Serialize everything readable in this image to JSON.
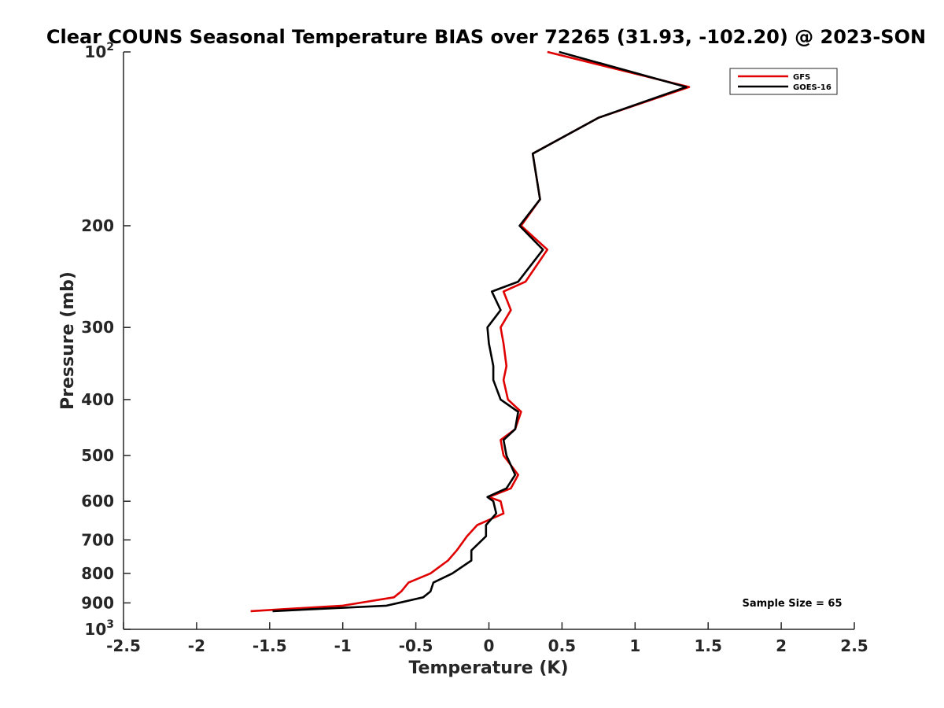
{
  "chart_data": {
    "type": "line",
    "orientation": "profile",
    "title": "Clear COUNS Seasonal Temperature BIAS over 72265 (31.93, -102.20) @ 2023-SON",
    "xlabel": "Temperature (K)",
    "ylabel": "Pressure (mb)",
    "xlim": [
      -2.5,
      2.5
    ],
    "ylim": [
      100,
      1000
    ],
    "yscale": "log",
    "yreversed": true,
    "grid": false,
    "legend_position": "top-right",
    "annotation": "Sample Size = 65",
    "x_ticks": [
      {
        "value": -2.5,
        "label": "-2.5"
      },
      {
        "value": -2,
        "label": "-2"
      },
      {
        "value": -1.5,
        "label": "-1.5"
      },
      {
        "value": -1,
        "label": "-1"
      },
      {
        "value": -0.5,
        "label": "-0.5"
      },
      {
        "value": 0,
        "label": "0"
      },
      {
        "value": 0.5,
        "label": "0.5"
      },
      {
        "value": 1,
        "label": "1"
      },
      {
        "value": 1.5,
        "label": "1.5"
      },
      {
        "value": 2,
        "label": "2"
      },
      {
        "value": 2.5,
        "label": "2.5"
      }
    ],
    "y_ticks": [
      {
        "value": 100,
        "base": "10",
        "exp": "2"
      },
      {
        "value": 200,
        "label": "200"
      },
      {
        "value": 300,
        "label": "300"
      },
      {
        "value": 400,
        "label": "400"
      },
      {
        "value": 500,
        "label": "500"
      },
      {
        "value": 600,
        "label": "600"
      },
      {
        "value": 700,
        "label": "700"
      },
      {
        "value": 800,
        "label": "800"
      },
      {
        "value": 900,
        "label": "900"
      },
      {
        "value": 1000,
        "base": "10",
        "exp": "3"
      }
    ],
    "series": [
      {
        "name": "GFS",
        "color": "#e00000",
        "points": [
          {
            "p": 100,
            "t": 0.4
          },
          {
            "p": 115,
            "t": 1.37
          },
          {
            "p": 130,
            "t": 0.75
          },
          {
            "p": 150,
            "t": 0.3
          },
          {
            "p": 180,
            "t": 0.35
          },
          {
            "p": 200,
            "t": 0.22
          },
          {
            "p": 220,
            "t": 0.4
          },
          {
            "p": 250,
            "t": 0.25
          },
          {
            "p": 260,
            "t": 0.1
          },
          {
            "p": 280,
            "t": 0.15
          },
          {
            "p": 300,
            "t": 0.08
          },
          {
            "p": 320,
            "t": 0.1
          },
          {
            "p": 350,
            "t": 0.12
          },
          {
            "p": 370,
            "t": 0.1
          },
          {
            "p": 400,
            "t": 0.13
          },
          {
            "p": 420,
            "t": 0.22
          },
          {
            "p": 450,
            "t": 0.18
          },
          {
            "p": 470,
            "t": 0.08
          },
          {
            "p": 500,
            "t": 0.1
          },
          {
            "p": 540,
            "t": 0.2
          },
          {
            "p": 570,
            "t": 0.15
          },
          {
            "p": 590,
            "t": 0.0
          },
          {
            "p": 600,
            "t": 0.08
          },
          {
            "p": 630,
            "t": 0.1
          },
          {
            "p": 660,
            "t": -0.08
          },
          {
            "p": 690,
            "t": -0.15
          },
          {
            "p": 730,
            "t": -0.22
          },
          {
            "p": 760,
            "t": -0.28
          },
          {
            "p": 800,
            "t": -0.4
          },
          {
            "p": 830,
            "t": -0.55
          },
          {
            "p": 860,
            "t": -0.6
          },
          {
            "p": 880,
            "t": -0.65
          },
          {
            "p": 910,
            "t": -1.0
          },
          {
            "p": 930,
            "t": -1.63
          }
        ]
      },
      {
        "name": "GOES-16",
        "color": "#000000",
        "points": [
          {
            "p": 100,
            "t": 0.48
          },
          {
            "p": 115,
            "t": 1.35
          },
          {
            "p": 130,
            "t": 0.75
          },
          {
            "p": 150,
            "t": 0.3
          },
          {
            "p": 180,
            "t": 0.35
          },
          {
            "p": 200,
            "t": 0.21
          },
          {
            "p": 220,
            "t": 0.37
          },
          {
            "p": 250,
            "t": 0.2
          },
          {
            "p": 260,
            "t": 0.02
          },
          {
            "p": 280,
            "t": 0.08
          },
          {
            "p": 300,
            "t": -0.01
          },
          {
            "p": 320,
            "t": 0.0
          },
          {
            "p": 350,
            "t": 0.03
          },
          {
            "p": 370,
            "t": 0.03
          },
          {
            "p": 400,
            "t": 0.08
          },
          {
            "p": 420,
            "t": 0.2
          },
          {
            "p": 450,
            "t": 0.18
          },
          {
            "p": 470,
            "t": 0.1
          },
          {
            "p": 500,
            "t": 0.12
          },
          {
            "p": 540,
            "t": 0.18
          },
          {
            "p": 570,
            "t": 0.12
          },
          {
            "p": 590,
            "t": -0.01
          },
          {
            "p": 600,
            "t": 0.03
          },
          {
            "p": 630,
            "t": 0.05
          },
          {
            "p": 660,
            "t": -0.02
          },
          {
            "p": 690,
            "t": -0.02
          },
          {
            "p": 730,
            "t": -0.12
          },
          {
            "p": 760,
            "t": -0.12
          },
          {
            "p": 800,
            "t": -0.25
          },
          {
            "p": 830,
            "t": -0.38
          },
          {
            "p": 860,
            "t": -0.4
          },
          {
            "p": 880,
            "t": -0.45
          },
          {
            "p": 910,
            "t": -0.7
          },
          {
            "p": 930,
            "t": -1.48
          }
        ]
      }
    ]
  }
}
